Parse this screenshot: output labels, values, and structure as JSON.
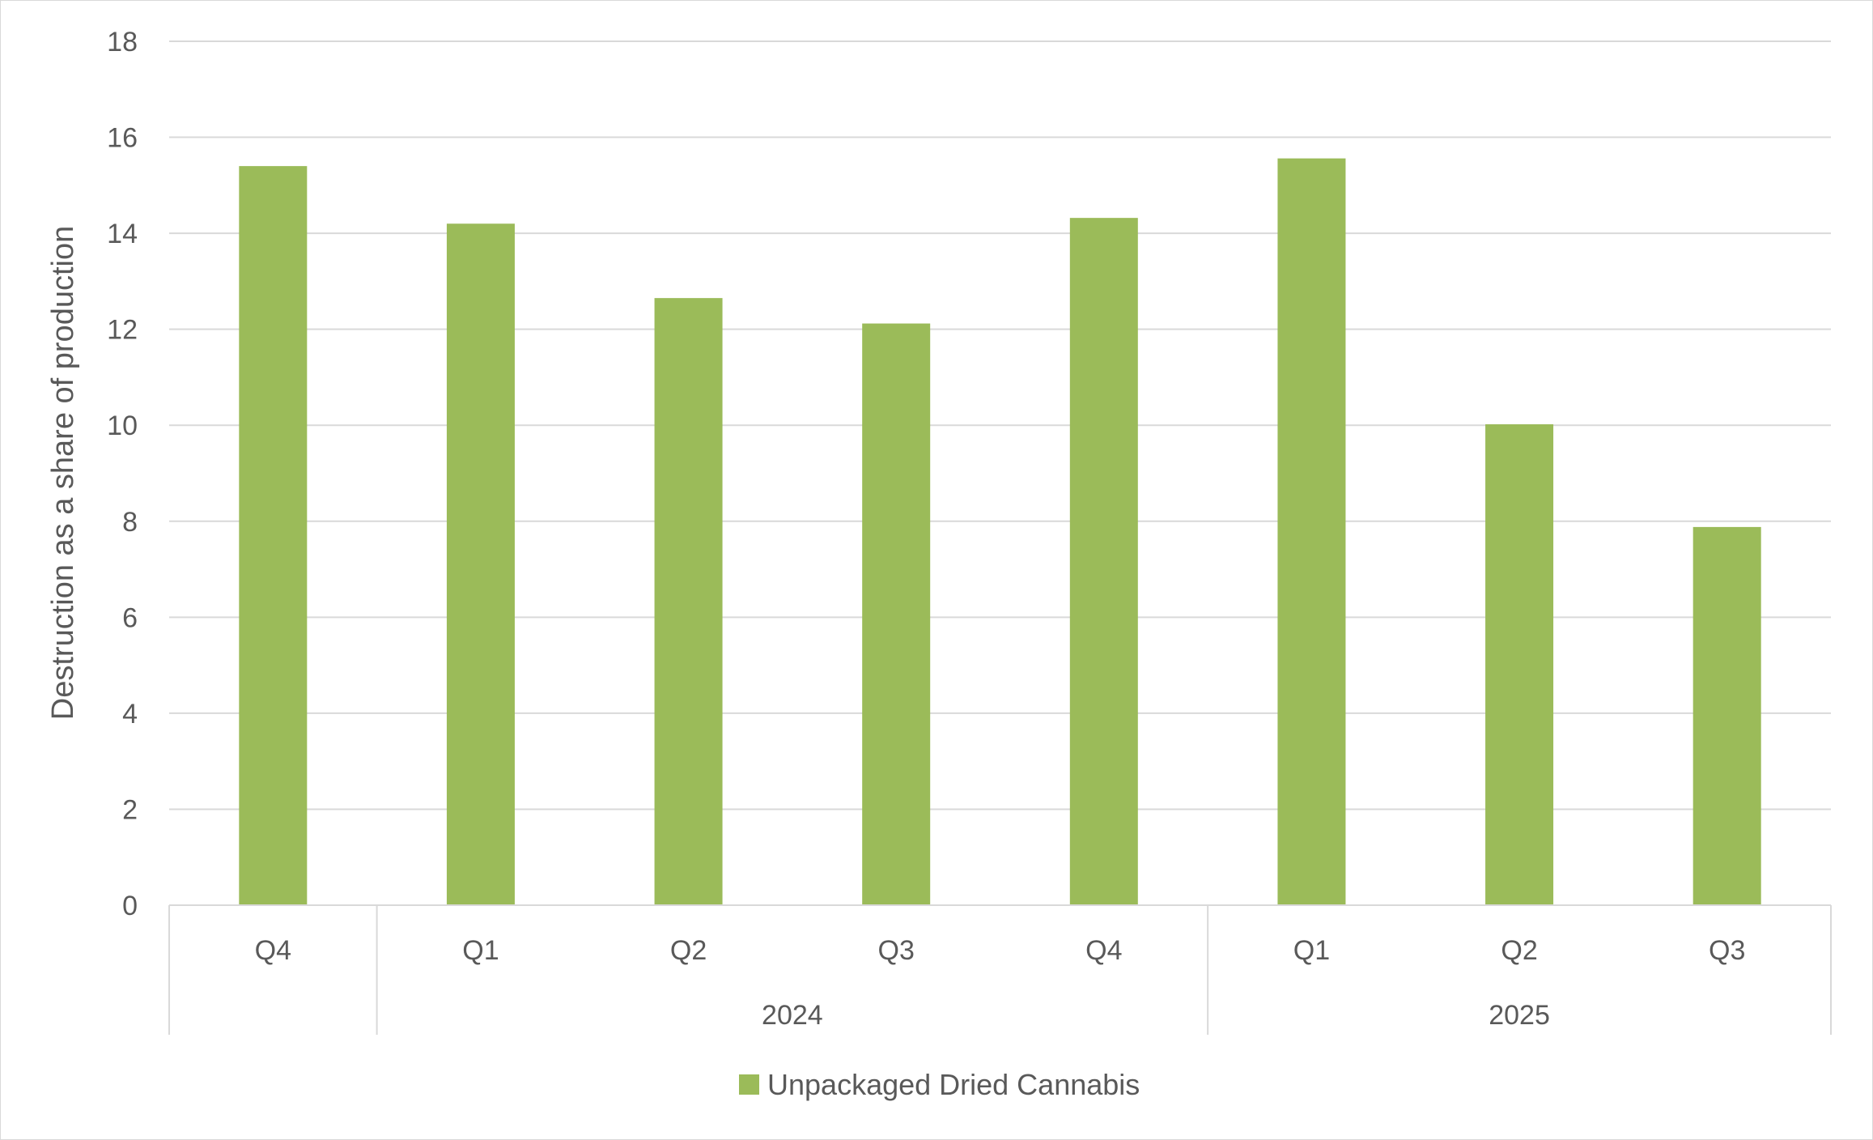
{
  "chart_data": {
    "type": "bar",
    "title": "",
    "xlabel": "",
    "ylabel": "Destruction as a share of production",
    "ylim": [
      0,
      18
    ],
    "yticks": [
      0,
      2,
      4,
      6,
      8,
      10,
      12,
      14,
      16,
      18
    ],
    "grid": true,
    "legend_position": "bottom",
    "categories": [
      "Q4",
      "Q1",
      "Q2",
      "Q3",
      "Q4",
      "Q1",
      "Q2",
      "Q3"
    ],
    "groups": [
      {
        "label": "",
        "span": [
          0,
          0
        ]
      },
      {
        "label": "2024",
        "span": [
          1,
          4
        ]
      },
      {
        "label": "2025",
        "span": [
          5,
          7
        ]
      }
    ],
    "series": [
      {
        "name": "Unpackaged Dried Cannabis",
        "color": "#9bbb59",
        "values": [
          15.4,
          14.2,
          12.65,
          12.12,
          14.32,
          15.56,
          10.02,
          7.88
        ]
      }
    ]
  }
}
